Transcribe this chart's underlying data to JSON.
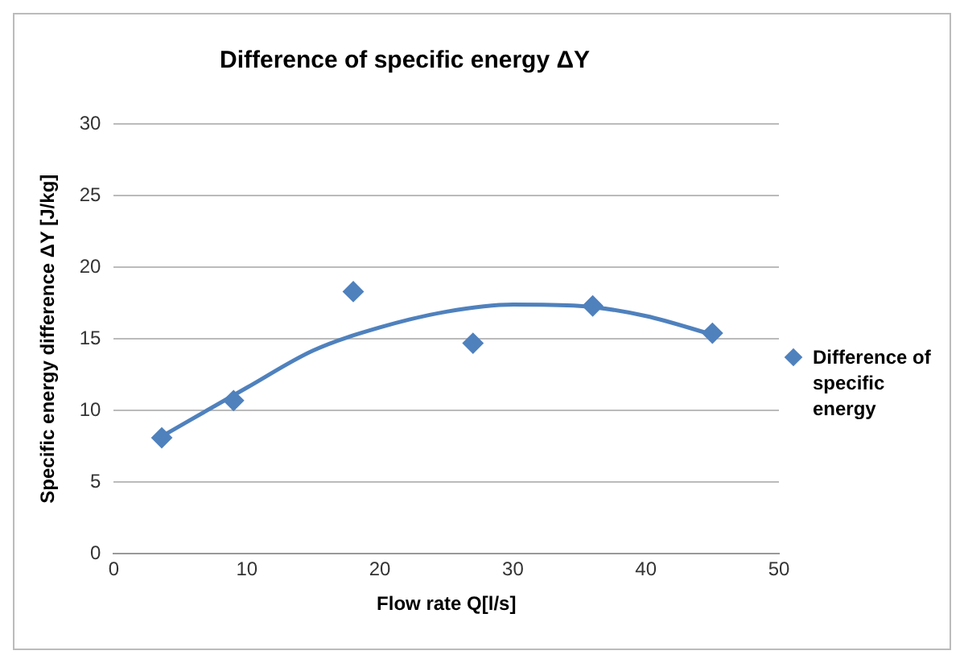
{
  "chart_data": {
    "type": "scatter",
    "title": "Difference of specific energy ΔY",
    "xlabel": "Flow rate Q[l/s]",
    "ylabel": "Specific energy difference ΔY [J/kg]",
    "xlim": [
      0,
      50
    ],
    "xticks": [
      0,
      10,
      20,
      30,
      40,
      50
    ],
    "ylim": [
      0,
      30
    ],
    "yticks": [
      0,
      5,
      10,
      15,
      20,
      25,
      30
    ],
    "grid": "y",
    "legend": "right",
    "series": [
      {
        "name": "Difference of specific energy",
        "marker": "diamond",
        "color": "#4f81bd",
        "x": [
          3.6,
          9,
          18,
          27,
          36,
          45
        ],
        "values": [
          8.1,
          10.7,
          18.3,
          14.7,
          17.3,
          15.4
        ]
      },
      {
        "type": "line",
        "marker": "none",
        "color": "#4f81bd",
        "x": [
          3.6,
          10,
          15,
          20,
          25,
          30,
          35,
          40,
          45
        ],
        "values": [
          8.2,
          11.6,
          14.2,
          15.8,
          16.9,
          17.4,
          17.3,
          16.6,
          15.3
        ]
      }
    ]
  }
}
